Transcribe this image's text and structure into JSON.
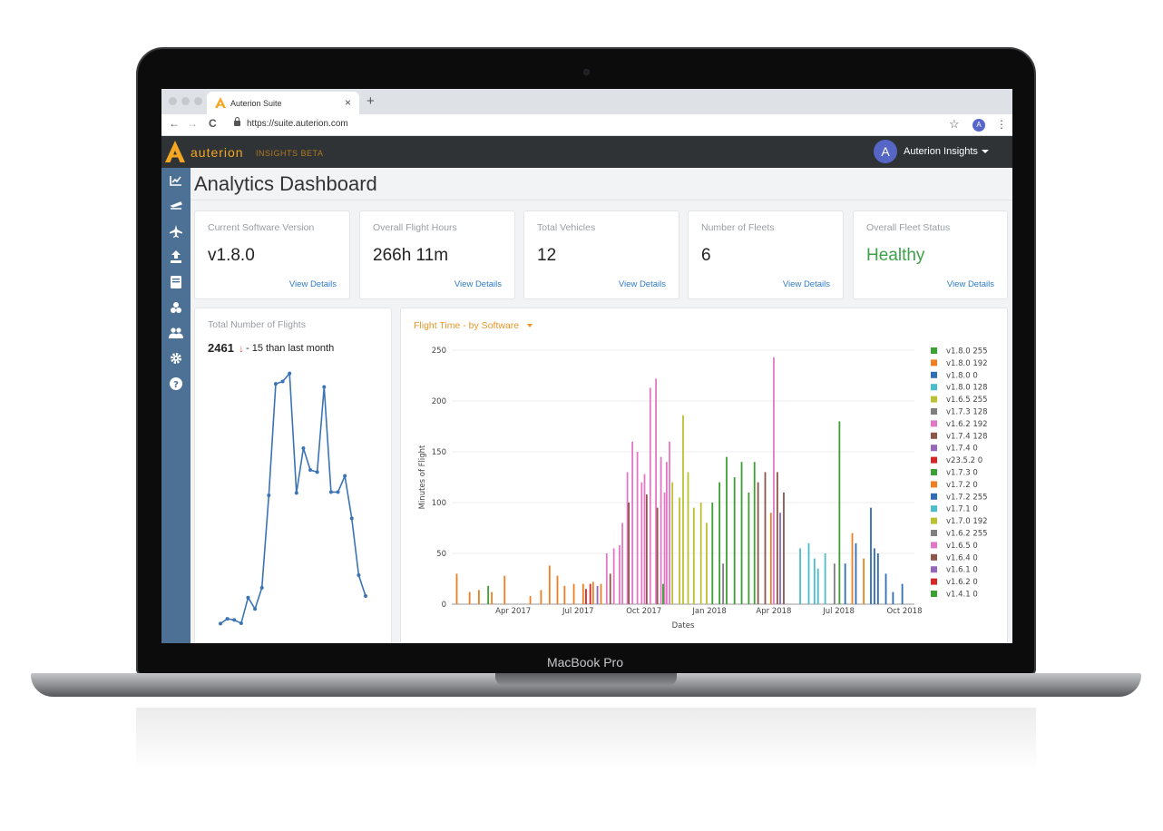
{
  "device": {
    "label": "MacBook Pro"
  },
  "browser": {
    "tab_title": "Auterion Suite",
    "tab_close": "×",
    "new_tab": "+",
    "back": "←",
    "forward": "→",
    "reload": "C",
    "url": "https://suite.auterion.com",
    "bookmark_icon": "star-icon",
    "profile_initial": "A",
    "menu_icon": "kebab-icon"
  },
  "app": {
    "name": "auterion",
    "subtitle": "INSIGHTS  BETA",
    "brand_color": "#f5a623",
    "user_initial": "A",
    "user_name": "Auterion Insights"
  },
  "sidebar": {
    "items": [
      {
        "icon": "chart-line-icon",
        "glyph": "📈"
      },
      {
        "icon": "plane-takeoff-icon",
        "glyph": "🛫"
      },
      {
        "icon": "plane-icon",
        "glyph": "✈"
      },
      {
        "icon": "upload-icon",
        "glyph": "⬆"
      },
      {
        "icon": "book-icon",
        "glyph": "▤"
      },
      {
        "icon": "fleet-icon",
        "glyph": "❖"
      },
      {
        "icon": "users-icon",
        "glyph": "👥"
      },
      {
        "icon": "gear-icon",
        "glyph": "⚙"
      },
      {
        "icon": "help-icon",
        "glyph": "?"
      }
    ]
  },
  "page": {
    "title": "Analytics Dashboard"
  },
  "stats": [
    {
      "label": "Current Software Version",
      "value": "v1.8.0",
      "link": "View Details"
    },
    {
      "label": "Overall Flight Hours",
      "value": "266h 11m",
      "link": "View Details"
    },
    {
      "label": "Total Vehicles",
      "value": "12",
      "link": "View Details"
    },
    {
      "label": "Number of Fleets",
      "value": "6",
      "link": "View Details"
    },
    {
      "label": "Overall Fleet Status",
      "value": "Healthy",
      "link": "View Details",
      "color": "#3da14a"
    }
  ],
  "flights": {
    "title": "Total Number of Flights",
    "count": "2461",
    "arrow": "↓",
    "delta": "- 15 than last month",
    "values": [
      8,
      24,
      20,
      9,
      95,
      57,
      128,
      437,
      810,
      818,
      845,
      445,
      595,
      522,
      515,
      800,
      448,
      448,
      502,
      360,
      170,
      100
    ],
    "ymax": 850
  },
  "chart": {
    "header": "Flight Time - by Software",
    "chart_data": {
      "type": "bar",
      "title": "",
      "xlabel": "Dates",
      "ylabel": "Minutes of Flight",
      "ylim": [
        0,
        250
      ],
      "yticks": [
        "0",
        "50",
        "100",
        "150",
        "200",
        "250"
      ],
      "x_range": [
        "2017-01-05",
        "2018-10-15"
      ],
      "xticks": [
        {
          "date": "2017-04-01",
          "label": "Apr 2017"
        },
        {
          "date": "2017-07-01",
          "label": "Jul 2017"
        },
        {
          "date": "2017-10-01",
          "label": "Oct 2017"
        },
        {
          "date": "2018-01-01",
          "label": "Jan 2018"
        },
        {
          "date": "2018-04-01",
          "label": "Apr 2018"
        },
        {
          "date": "2018-07-01",
          "label": "Jul 2018"
        },
        {
          "date": "2018-10-01",
          "label": "Oct 2018"
        }
      ],
      "series": [
        {
          "name": "v1.8.0 255",
          "color": "#3ca034",
          "points": [
            [
              "2018-07-02",
              180
            ]
          ]
        },
        {
          "name": "v1.8.0 192",
          "color": "#f07f23",
          "points": [
            [
              "2017-01-12",
              30
            ],
            [
              "2017-01-30",
              12
            ],
            [
              "2017-02-12",
              14
            ],
            [
              "2017-03-02",
              12
            ],
            [
              "2017-03-20",
              28
            ],
            [
              "2017-04-25",
              8
            ],
            [
              "2017-05-10",
              14
            ],
            [
              "2017-05-22",
              38
            ],
            [
              "2017-06-02",
              28
            ],
            [
              "2017-06-12",
              18
            ],
            [
              "2017-06-25",
              20
            ],
            [
              "2017-07-08",
              20
            ],
            [
              "2017-07-22",
              22
            ],
            [
              "2017-08-02",
              20
            ],
            [
              "2018-07-20",
              70
            ],
            [
              "2018-08-05",
              45
            ]
          ]
        },
        {
          "name": "v1.8.0 0",
          "color": "#2f6db5",
          "points": [
            [
              "2018-07-10",
              40
            ],
            [
              "2018-07-25",
              60
            ],
            [
              "2018-08-15",
              95
            ],
            [
              "2018-08-25",
              50
            ],
            [
              "2018-09-05",
              30
            ],
            [
              "2018-09-15",
              12
            ],
            [
              "2018-09-28",
              20
            ]
          ]
        },
        {
          "name": "v1.8.0 128",
          "color": "#4bbccc",
          "points": [
            [
              "2018-05-08",
              55
            ],
            [
              "2018-05-20",
              60
            ],
            [
              "2018-06-02",
              35
            ],
            [
              "2018-06-12",
              50
            ]
          ]
        },
        {
          "name": "v1.6.5 255",
          "color": "#bcc131",
          "points": [
            [
              "2017-11-10",
              120
            ],
            [
              "2017-11-20",
              105
            ],
            [
              "2017-11-25",
              186
            ],
            [
              "2017-12-02",
              130
            ],
            [
              "2017-12-10",
              95
            ]
          ]
        },
        {
          "name": "v1.7.3 128",
          "color": "#7f7f7f",
          "points": [
            [
              "2018-01-20",
              40
            ]
          ]
        },
        {
          "name": "v1.6.2 192",
          "color": "#e278c5",
          "points": [
            [
              "2017-08-20",
              55
            ],
            [
              "2017-08-28",
              58
            ],
            [
              "2017-09-08",
              130
            ],
            [
              "2017-09-15",
              160
            ],
            [
              "2017-09-22",
              150
            ],
            [
              "2017-10-02",
              128
            ],
            [
              "2017-10-10",
              213
            ],
            [
              "2017-10-18",
              222
            ],
            [
              "2017-10-25",
              145
            ],
            [
              "2017-11-02",
              140
            ],
            [
              "2018-04-01",
              243
            ]
          ]
        },
        {
          "name": "v1.7.4 128",
          "color": "#8c564b",
          "points": [
            [
              "2018-03-10",
              120
            ],
            [
              "2018-03-20",
              130
            ],
            [
              "2018-04-06",
              130
            ],
            [
              "2018-04-15",
              110
            ]
          ]
        },
        {
          "name": "v1.7.4 0",
          "color": "#9467bd",
          "points": [
            [
              "2018-04-10",
              90
            ]
          ]
        },
        {
          "name": "v23.5.2 0",
          "color": "#d62728",
          "points": [
            [
              "2017-07-18",
              20
            ]
          ]
        },
        {
          "name": "v1.7.3 0",
          "color": "#3ca034",
          "points": [
            [
              "2018-01-05",
              100
            ],
            [
              "2018-01-15",
              120
            ],
            [
              "2018-01-25",
              145
            ],
            [
              "2018-02-05",
              125
            ],
            [
              "2018-02-15",
              140
            ],
            [
              "2018-02-25",
              110
            ],
            [
              "2018-03-05",
              140
            ]
          ]
        },
        {
          "name": "v1.7.2 0",
          "color": "#f07f23",
          "points": [
            [
              "2018-03-28",
              90
            ]
          ]
        },
        {
          "name": "v1.7.2 255",
          "color": "#2f6db5",
          "points": [
            [
              "2018-08-20",
              55
            ]
          ]
        },
        {
          "name": "v1.7.1 0",
          "color": "#4bbccc",
          "points": [
            [
              "2018-05-28",
              45
            ]
          ]
        },
        {
          "name": "v1.7.0 192",
          "color": "#bcc131",
          "points": [
            [
              "2017-12-20",
              100
            ],
            [
              "2017-12-28",
              80
            ]
          ]
        },
        {
          "name": "v1.6.2 255",
          "color": "#7f7f7f",
          "points": [
            [
              "2018-06-25",
              40
            ]
          ]
        },
        {
          "name": "v1.6.5 0",
          "color": "#e278c5",
          "points": [
            [
              "2017-08-10",
              50
            ],
            [
              "2017-09-01",
              80
            ],
            [
              "2017-09-28",
              120
            ],
            [
              "2017-10-30",
              110
            ],
            [
              "2017-11-06",
              160
            ]
          ]
        },
        {
          "name": "v1.6.4 0",
          "color": "#8c564b",
          "points": [
            [
              "2017-08-15",
              30
            ],
            [
              "2017-09-10",
              100
            ],
            [
              "2017-10-05",
              108
            ],
            [
              "2017-10-20",
              95
            ]
          ]
        },
        {
          "name": "v1.6.1 0",
          "color": "#9467bd",
          "points": [
            [
              "2017-07-28",
              18
            ]
          ]
        },
        {
          "name": "v1.6.2 0",
          "color": "#d62728",
          "points": [
            [
              "2017-07-12",
              15
            ]
          ]
        },
        {
          "name": "v1.4.1 0",
          "color": "#3ca034",
          "points": [
            [
              "2017-02-25",
              18
            ],
            [
              "2017-10-28",
              20
            ]
          ]
        }
      ]
    }
  }
}
